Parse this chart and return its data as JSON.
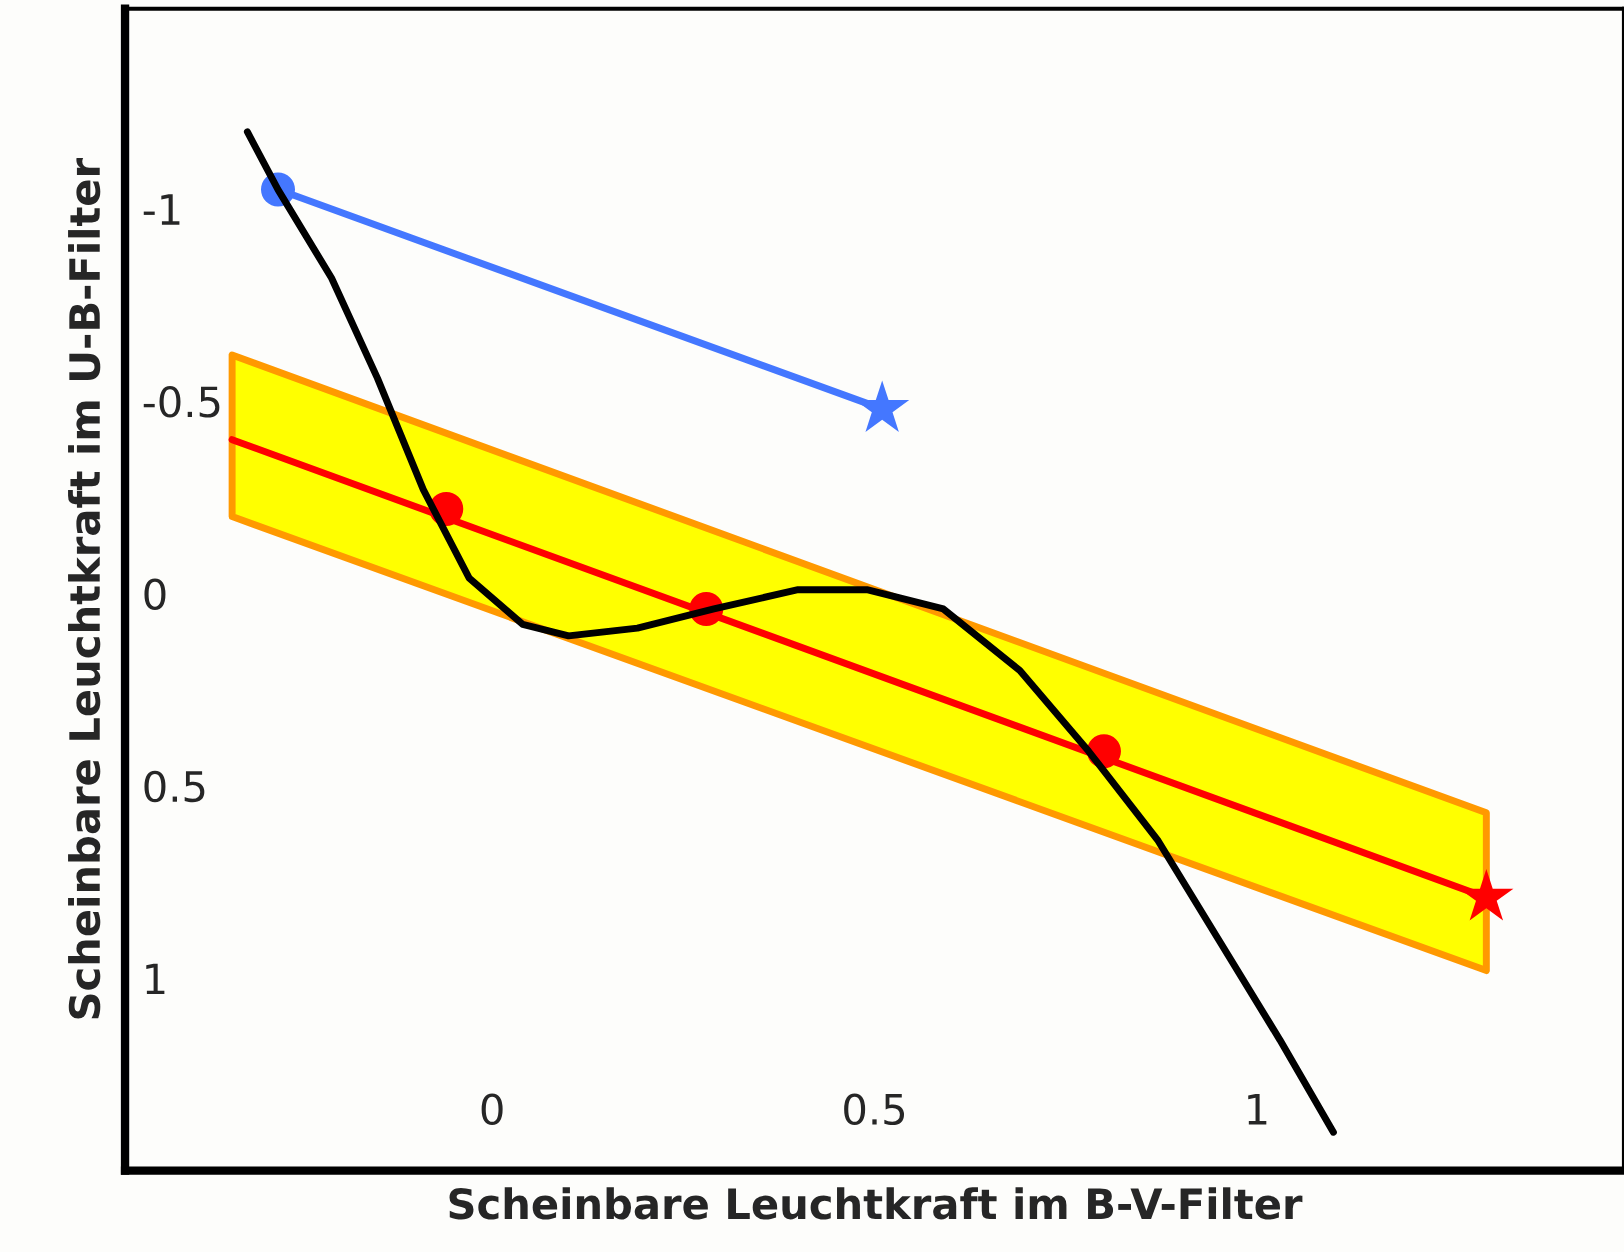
{
  "chart_data": {
    "type": "line",
    "xlabel": "Scheinbare Leuchtkraft im B-V-Filter",
    "ylabel": "Scheinbare Leuchtkraft im U-B-Filter",
    "xlim": [
      -0.48,
      1.48
    ],
    "ylim": [
      1.5,
      -1.52
    ],
    "xticks": [
      0,
      0.5,
      1
    ],
    "yticks": [
      {
        "value": -1,
        "label": "-1"
      },
      {
        "value": -0.5,
        "label": "-0.5"
      },
      0,
      0.5,
      1
    ],
    "series": [
      {
        "color": "#ff0000",
        "x": [
          -0.34,
          1.3
        ],
        "values": [
          -0.4,
          0.79
        ],
        "lower": [
          -0.2,
          0.98
        ],
        "upper": [
          -0.62,
          0.57
        ]
      },
      {
        "type": "scatter",
        "color": "#ff0000",
        "x": [
          -0.06,
          0.28,
          0.8
        ],
        "values": [
          -0.22,
          0.04,
          0.41
        ],
        "marker": "circle"
      },
      {
        "type": "scatter",
        "color": "#ff0000",
        "x": [
          1.3
        ],
        "values": [
          0.79
        ],
        "marker": "star"
      },
      {
        "color": "#4477ff",
        "x": [
          -0.28,
          0.51
        ],
        "values": [
          -1.05,
          -0.48
        ]
      },
      {
        "type": "scatter",
        "color": "#4477ff",
        "x": [
          -0.28
        ],
        "values": [
          -1.05
        ],
        "marker": "circle"
      },
      {
        "type": "scatter",
        "color": "#4477ff",
        "x": [
          0.51
        ],
        "values": [
          -0.48
        ],
        "marker": "star"
      },
      {
        "color": "#000000",
        "x": [
          -0.32,
          -0.28,
          -0.21,
          -0.15,
          -0.09,
          -0.03,
          0.04,
          0.1,
          0.19,
          0.29,
          0.4,
          0.49,
          0.59,
          0.69,
          0.78,
          0.87,
          0.95,
          1.03,
          1.1
        ],
        "values": [
          -1.2,
          -1.05,
          -0.82,
          -0.56,
          -0.27,
          -0.04,
          0.08,
          0.11,
          0.09,
          0.04,
          -0.01,
          -0.01,
          0.04,
          0.2,
          0.41,
          0.64,
          0.9,
          1.16,
          1.4
        ]
      }
    ]
  }
}
